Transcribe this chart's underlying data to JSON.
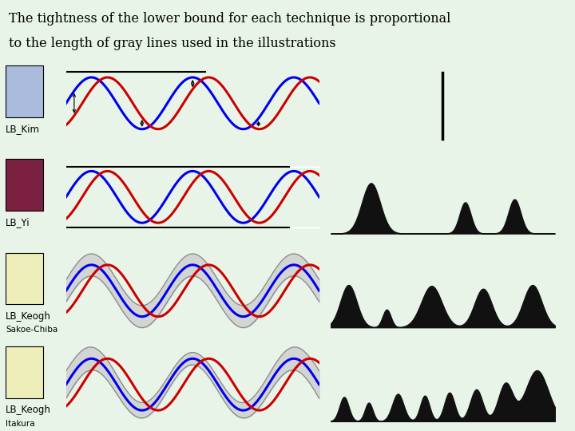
{
  "title_line1": "The tightness of the lower bound for each technique is proportional",
  "title_line2": "to the length of gray lines used in the illustrations",
  "bg_color": "#e8f4e8",
  "title_bg": "#ffffff",
  "wave_blue": "#0000ee",
  "wave_red": "#cc0000",
  "wave_white": "#ffffff",
  "gray_line": "#888888",
  "black": "#000000",
  "bump_color": "#111111",
  "bump_bg": "#ffffff",
  "label_colors": [
    "#aabbdd",
    "#7a2040",
    "#eeeebb",
    "#eeeebb"
  ],
  "row_labels": [
    "LB_Kim",
    "LB_Yi",
    "LB_Keogh",
    "LB_Keogh"
  ],
  "row_sublabels": [
    "",
    "",
    "Sakoe-Chiba",
    "Itakura"
  ],
  "n_cycles": 2.5,
  "wave_amp": 0.75
}
